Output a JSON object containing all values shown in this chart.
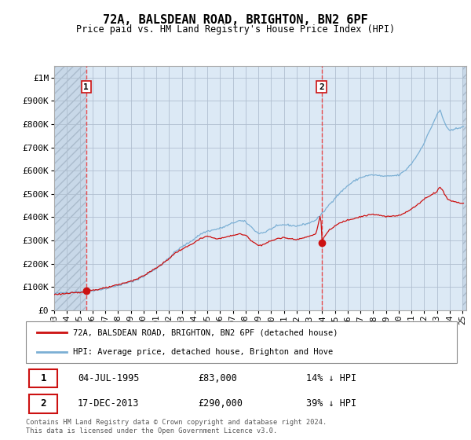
{
  "title": "72A, BALSDEAN ROAD, BRIGHTON, BN2 6PF",
  "subtitle": "Price paid vs. HM Land Registry's House Price Index (HPI)",
  "sale1_price": 83000,
  "sale1_hpi_pct": "14% ↓ HPI",
  "sale1_display": "04-JUL-1995",
  "sale2_price": 290000,
  "sale2_hpi_pct": "39% ↓ HPI",
  "sale2_display": "17-DEC-2013",
  "hpi_color": "#7bafd4",
  "price_color": "#cc1111",
  "dashed_color": "#ee3333",
  "ylim_max": 1050000,
  "ylabel_ticks": [
    0,
    100000,
    200000,
    300000,
    400000,
    500000,
    600000,
    700000,
    800000,
    900000,
    1000000
  ],
  "ylabel_labels": [
    "£0",
    "£100K",
    "£200K",
    "£300K",
    "£400K",
    "£500K",
    "£600K",
    "£700K",
    "£800K",
    "£900K",
    "£1M"
  ],
  "legend_label_red": "72A, BALSDEAN ROAD, BRIGHTON, BN2 6PF (detached house)",
  "legend_label_blue": "HPI: Average price, detached house, Brighton and Hove",
  "footer": "Contains HM Land Registry data © Crown copyright and database right 2024.\nThis data is licensed under the Open Government Licence v3.0.",
  "sale1_x": 1995.504,
  "sale2_x": 2013.958,
  "hatch_end_x": 1995.504,
  "xlim_start": 1993.0,
  "xlim_end": 2025.3,
  "xtick_years": [
    1993,
    1994,
    1995,
    1996,
    1997,
    1998,
    1999,
    2000,
    2001,
    2002,
    2003,
    2004,
    2005,
    2006,
    2007,
    2008,
    2009,
    2010,
    2011,
    2012,
    2013,
    2014,
    2015,
    2016,
    2017,
    2018,
    2019,
    2020,
    2021,
    2022,
    2023,
    2024,
    2025
  ],
  "bg_color": "#dce9f5",
  "hatch_color": "#c8d8e8",
  "grid_color": "#b0bfd0"
}
